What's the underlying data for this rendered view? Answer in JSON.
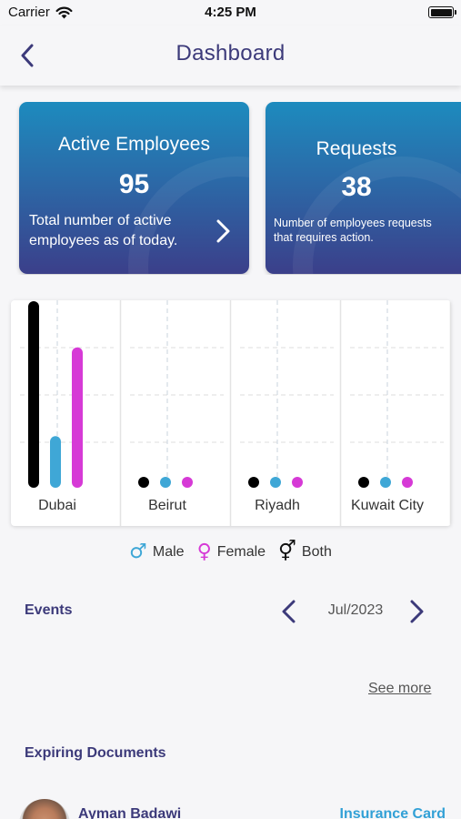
{
  "status_bar": {
    "carrier": "Carrier",
    "time": "4:25 PM"
  },
  "nav": {
    "title": "Dashboard"
  },
  "cards": [
    {
      "title": "Active Employees",
      "value": "95",
      "description_lines": [
        "Total number of active",
        "employees as of today."
      ]
    },
    {
      "title": "Requests",
      "value": "38",
      "description_lines": [
        "Number of employees requests",
        "that requires action."
      ]
    }
  ],
  "chart_data": {
    "type": "bar",
    "categories": [
      "Dubai",
      "Beirut",
      "Riyadh",
      "Kuwait City"
    ],
    "series": [
      {
        "name": "Male",
        "values": [
          95,
          0,
          0,
          0
        ]
      },
      {
        "name": "Female",
        "values": [
          22,
          0,
          0,
          0
        ]
      },
      {
        "name": "Both",
        "values": [
          70,
          0,
          0,
          0
        ]
      }
    ],
    "colors": {
      "Male": "#000000",
      "Female": "#3fa7d6",
      "Both": "#d63ad6"
    },
    "ylim": [
      0,
      95
    ],
    "grid": true
  },
  "legend": [
    {
      "label": "Male",
      "icon": "male-icon",
      "symbol": "♂",
      "color": "#3fa7d6"
    },
    {
      "label": "Female",
      "icon": "female-icon",
      "symbol": "♀",
      "color": "#d63ad6"
    },
    {
      "label": "Both",
      "icon": "both-icon",
      "symbol": "⚥",
      "color": "#111111"
    }
  ],
  "events": {
    "title": "Events",
    "month": "Jul/2023",
    "see_more": "See more"
  },
  "expiring": {
    "title": "Expiring Documents",
    "items": [
      {
        "name": "Ayman Badawi",
        "document": "Insurance Card"
      }
    ]
  },
  "colors": {
    "primary": "#3c3a7a",
    "accent": "#31a0d6",
    "background": "#f6f6f8"
  }
}
